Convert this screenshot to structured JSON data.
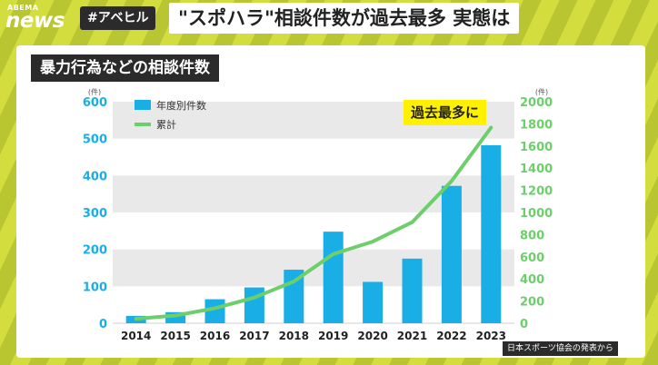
{
  "header": {
    "logo_top": "ABEMA",
    "logo_main": "news",
    "hashtag": "#アベヒル",
    "headline": "\"スポハラ\"相談件数が過去最多 実態は"
  },
  "colors": {
    "bar": "#1aaee6",
    "line": "#6ccf6a",
    "left_axis": "#1aaee6",
    "right_axis": "#6ccf6a",
    "band": "#e9e9e9"
  },
  "chart_data": {
    "type": "bar",
    "title": "暴力行為などの相談件数",
    "categories": [
      "2014",
      "2015",
      "2016",
      "2017",
      "2018",
      "2019",
      "2020",
      "2021",
      "2022",
      "2023"
    ],
    "series": [
      {
        "name": "年度別件数",
        "type": "bar",
        "axis": "left",
        "values": [
          20,
          30,
          65,
          97,
          145,
          248,
          112,
          175,
          372,
          482
        ]
      },
      {
        "name": "累計",
        "type": "line",
        "axis": "right",
        "values": [
          40,
          70,
          135,
          232,
          377,
          625,
          737,
          912,
          1284,
          1766
        ]
      }
    ],
    "y_left": {
      "unit": "(件)",
      "min": 0,
      "max": 600,
      "ticks": [
        0,
        100,
        200,
        300,
        400,
        500,
        600
      ]
    },
    "y_right": {
      "unit": "(件)",
      "min": 0,
      "max": 2000,
      "ticks": [
        0,
        200,
        400,
        600,
        800,
        1000,
        1200,
        1400,
        1600,
        1800,
        2000
      ]
    },
    "legend": [
      "年度別件数",
      "累計"
    ],
    "annotation": "過去最多に",
    "source": "日本スポーツ協会の発表から"
  }
}
